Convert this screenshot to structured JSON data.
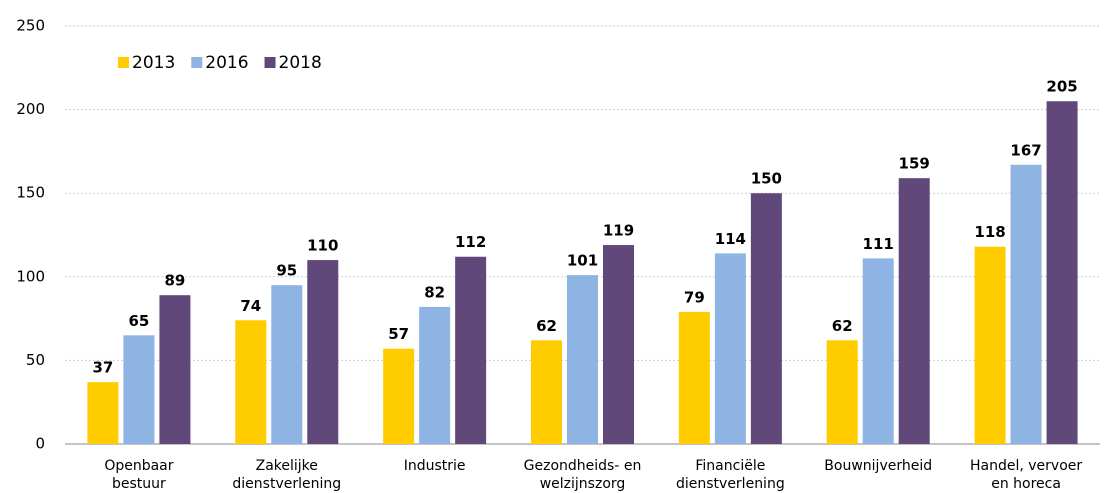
{
  "chart_data": {
    "type": "bar",
    "categories": [
      [
        "Openbaar",
        "bestuur"
      ],
      [
        "Zakelijke",
        "dienstverlening"
      ],
      [
        "Industrie"
      ],
      [
        "Gezondheids- en",
        "welzijnszorg"
      ],
      [
        "Financiële",
        "dienstverlening"
      ],
      [
        "Bouwnijverheid"
      ],
      [
        "Handel, vervoer",
        "en horeca"
      ]
    ],
    "series": [
      {
        "name": "2013",
        "color": "#ffcc00",
        "values": [
          37,
          74,
          57,
          62,
          79,
          62,
          118
        ]
      },
      {
        "name": "2016",
        "color": "#8db4e2",
        "values": [
          65,
          95,
          82,
          101,
          114,
          111,
          167
        ]
      },
      {
        "name": "2018",
        "color": "#60497a",
        "values": [
          89,
          110,
          112,
          119,
          150,
          159,
          205
        ]
      }
    ],
    "ylim": [
      0,
      250
    ],
    "yticks": [
      0,
      50,
      100,
      150,
      200,
      250
    ],
    "grid": true,
    "legend": "top-left"
  }
}
